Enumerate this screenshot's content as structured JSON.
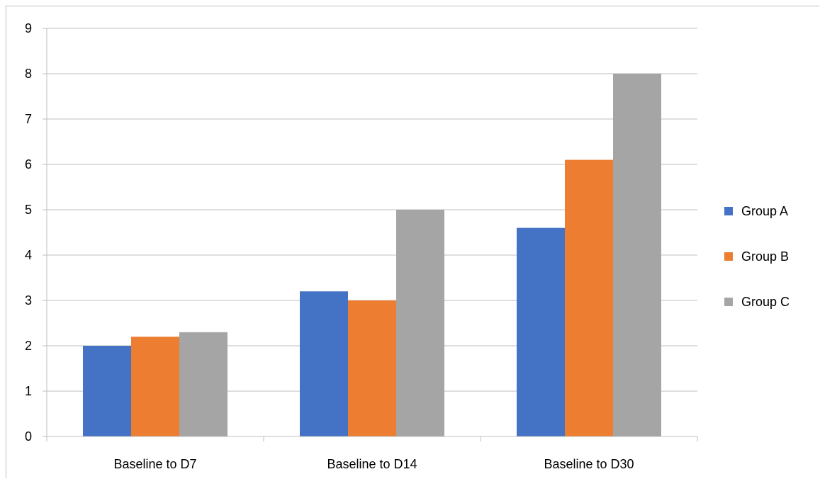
{
  "chart_data": {
    "type": "bar",
    "categories": [
      "Baseline to D7",
      "Baseline to D14",
      "Baseline to D30"
    ],
    "series": [
      {
        "name": "Group A",
        "values": [
          2.0,
          3.2,
          4.6
        ],
        "color": "#4472C4"
      },
      {
        "name": "Group B",
        "values": [
          2.2,
          3.0,
          6.1
        ],
        "color": "#ED7D31"
      },
      {
        "name": "Group C",
        "values": [
          2.3,
          5.0,
          8.0
        ],
        "color": "#A5A5A5"
      }
    ],
    "ylim": [
      0,
      9
    ],
    "yticks": [
      0,
      1,
      2,
      3,
      4,
      5,
      6,
      7,
      8,
      9
    ],
    "grid": true,
    "legend_position": "right",
    "title": "",
    "xlabel": "",
    "ylabel": ""
  }
}
